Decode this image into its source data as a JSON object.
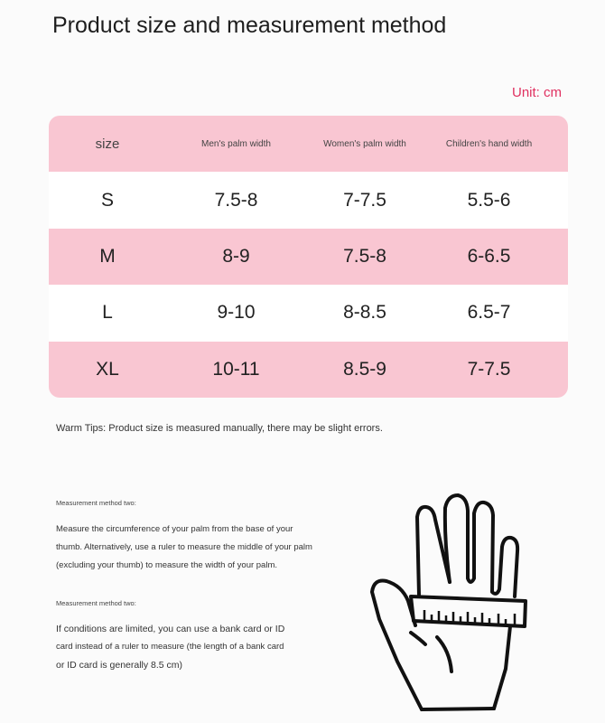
{
  "title": "Product size and measurement method",
  "unit": "Unit: cm",
  "table": {
    "headers": [
      "size",
      "Men's palm width",
      "Women's palm width",
      "Children's hand width"
    ],
    "rows": [
      [
        "S",
        "7.5-8",
        "7-7.5",
        "5.5-6"
      ],
      [
        "M",
        "8-9",
        "7.5-8",
        "6-6.5"
      ],
      [
        "L",
        "9-10",
        "8-8.5",
        "6.5-7"
      ],
      [
        "XL",
        "10-11",
        "8.5-9",
        "7-7.5"
      ]
    ]
  },
  "tips": "Warm Tips: Product size is measured manually, there may be slight errors.",
  "method1": {
    "label": "Measurement method two:",
    "lines": [
      "Measure the circumference of your palm from the base of your",
      "thumb. Alternatively, use a ruler to measure the middle of your palm",
      "(excluding your thumb) to measure the width of your palm."
    ]
  },
  "method2": {
    "label": "Measurement method two:",
    "lines": [
      "If conditions are limited, you can use a bank card or ID",
      "card instead of a ruler to measure (the length of a bank card",
      "or ID card is generally 8.5 cm)"
    ]
  },
  "colors": {
    "accent_pink": "#f9c6d2",
    "unit_red": "#e03060"
  },
  "illustration": "hand-with-ruler-icon"
}
